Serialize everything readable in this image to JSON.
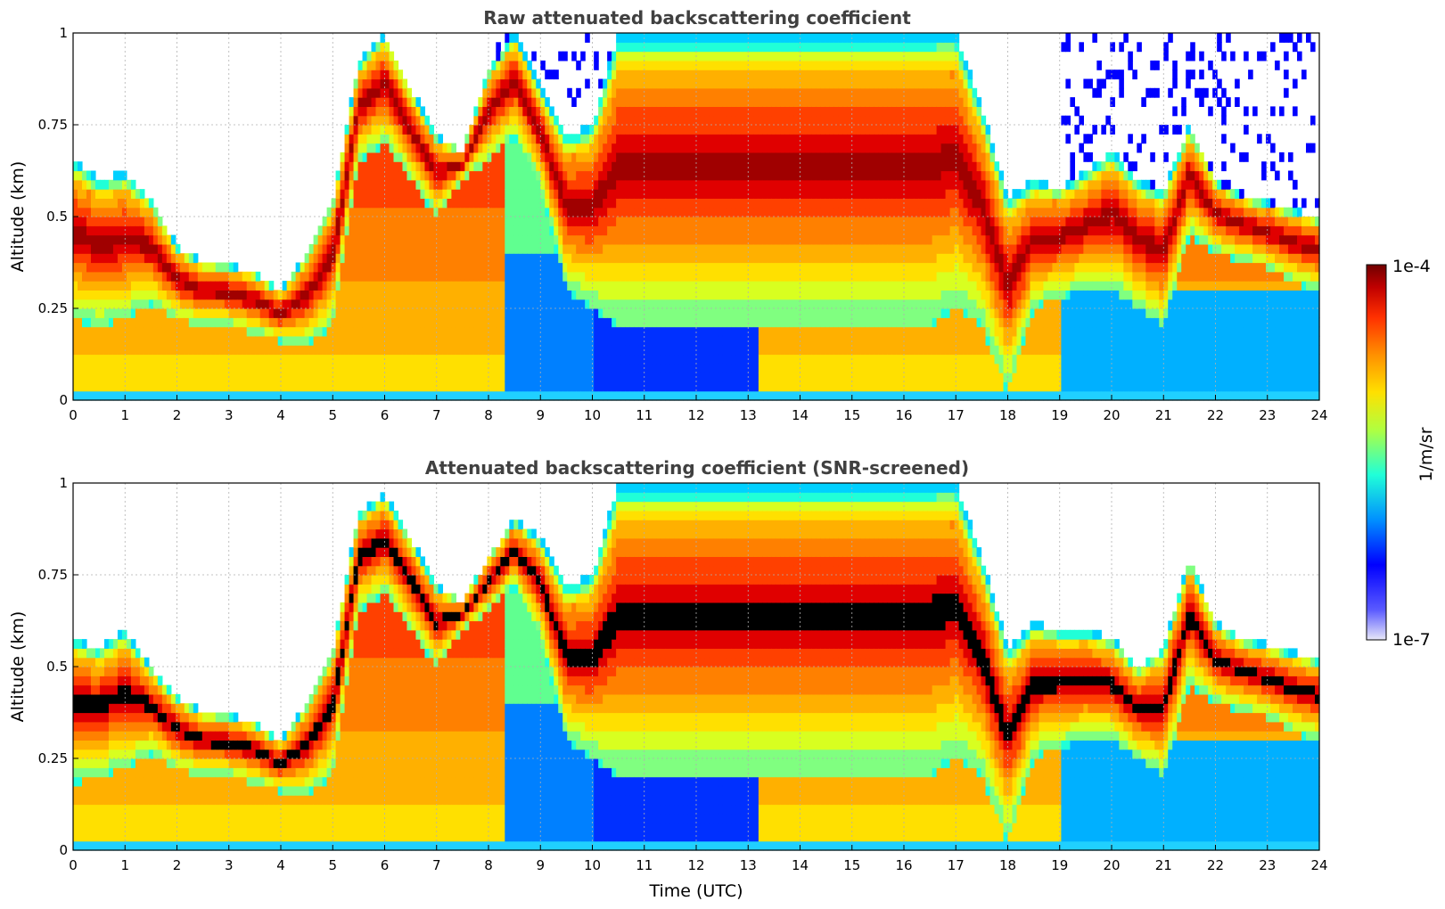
{
  "chart_data": [
    {
      "type": "heatmap",
      "title": "Raw attenuated backscattering coefficient",
      "xlabel": "",
      "ylabel": "Altitude (km)",
      "xlim": [
        0,
        24
      ],
      "ylim": [
        0,
        1
      ],
      "xticks": [
        "0",
        "1",
        "2",
        "3",
        "4",
        "5",
        "6",
        "7",
        "8",
        "9",
        "10",
        "11",
        "12",
        "13",
        "14",
        "15",
        "16",
        "17",
        "18",
        "19",
        "20",
        "21",
        "22",
        "23",
        "24"
      ],
      "yticks": [
        "0",
        "0.25",
        "0.5",
        "0.75",
        "1"
      ],
      "grid": true,
      "screened": false,
      "layer_top_km": [
        0.66,
        0.6,
        0.62,
        0.55,
        0.42,
        0.38,
        0.37,
        0.35,
        0.3,
        0.4,
        0.55,
        0.92,
        1.0,
        0.85,
        0.72,
        0.68,
        0.9,
        1.0,
        0.85,
        0.72,
        0.75,
        1.0,
        1.0,
        1.0,
        1.0,
        1.0,
        1.0,
        1.0,
        1.0,
        1.0,
        1.0,
        1.0,
        1.0,
        1.0,
        1.0,
        0.8,
        0.55,
        0.6,
        0.58,
        0.62,
        0.68,
        0.6,
        0.57,
        0.75,
        0.6,
        0.56,
        0.54,
        0.52,
        0.5
      ],
      "layer_base_km": [
        0.22,
        0.2,
        0.22,
        0.26,
        0.22,
        0.2,
        0.2,
        0.18,
        0.16,
        0.15,
        0.2,
        0.65,
        0.7,
        0.6,
        0.5,
        0.6,
        0.65,
        0.72,
        0.58,
        0.3,
        0.25,
        0.2,
        0.2,
        0.2,
        0.2,
        0.2,
        0.2,
        0.2,
        0.2,
        0.2,
        0.2,
        0.2,
        0.2,
        0.2,
        0.25,
        0.2,
        0.02,
        0.25,
        0.28,
        0.3,
        0.3,
        0.25,
        0.2,
        0.45,
        0.4,
        0.38,
        0.36,
        0.32,
        0.3
      ]
    },
    {
      "type": "heatmap",
      "title": "Attenuated backscattering coefficient (SNR-screened)",
      "xlabel": "Time (UTC)",
      "ylabel": "Altitude (km)",
      "xlim": [
        0,
        24
      ],
      "ylim": [
        0,
        1
      ],
      "xticks": [
        "0",
        "1",
        "2",
        "3",
        "4",
        "5",
        "6",
        "7",
        "8",
        "9",
        "10",
        "11",
        "12",
        "13",
        "14",
        "15",
        "16",
        "17",
        "18",
        "19",
        "20",
        "21",
        "22",
        "23",
        "24"
      ],
      "yticks": [
        "0",
        "0.25",
        "0.5",
        "0.75",
        "1"
      ],
      "grid": true,
      "screened": true,
      "layer_top_km": [
        0.58,
        0.55,
        0.6,
        0.5,
        0.42,
        0.38,
        0.37,
        0.35,
        0.3,
        0.4,
        0.55,
        0.92,
        0.97,
        0.85,
        0.72,
        0.68,
        0.8,
        0.9,
        0.85,
        0.72,
        0.75,
        1.0,
        1.0,
        1.0,
        1.0,
        1.0,
        1.0,
        1.0,
        1.0,
        1.0,
        1.0,
        1.0,
        1.0,
        1.0,
        1.0,
        0.8,
        0.55,
        0.62,
        0.6,
        0.6,
        0.58,
        0.5,
        0.55,
        0.8,
        0.62,
        0.58,
        0.56,
        0.54,
        0.52
      ],
      "layer_base_km": [
        0.18,
        0.2,
        0.22,
        0.26,
        0.22,
        0.2,
        0.2,
        0.18,
        0.16,
        0.15,
        0.2,
        0.65,
        0.7,
        0.6,
        0.5,
        0.6,
        0.65,
        0.72,
        0.58,
        0.3,
        0.25,
        0.2,
        0.2,
        0.2,
        0.2,
        0.2,
        0.2,
        0.2,
        0.2,
        0.2,
        0.2,
        0.2,
        0.2,
        0.2,
        0.25,
        0.2,
        0.02,
        0.25,
        0.28,
        0.3,
        0.3,
        0.25,
        0.2,
        0.45,
        0.4,
        0.38,
        0.36,
        0.32,
        0.3
      ]
    }
  ],
  "colorbar": {
    "label": "1/m/sr",
    "max_label": "1e-4",
    "min_label": "1e-7",
    "colors": [
      "#e8e8f8",
      "#b8b8f0",
      "#5a5aff",
      "#0000ff",
      "#0050ff",
      "#0090ff",
      "#00d0ff",
      "#20ffd8",
      "#80ff80",
      "#d8ff20",
      "#ffe000",
      "#ffb000",
      "#ff8000",
      "#ff4000",
      "#e00000",
      "#a00000",
      "#700000"
    ]
  }
}
